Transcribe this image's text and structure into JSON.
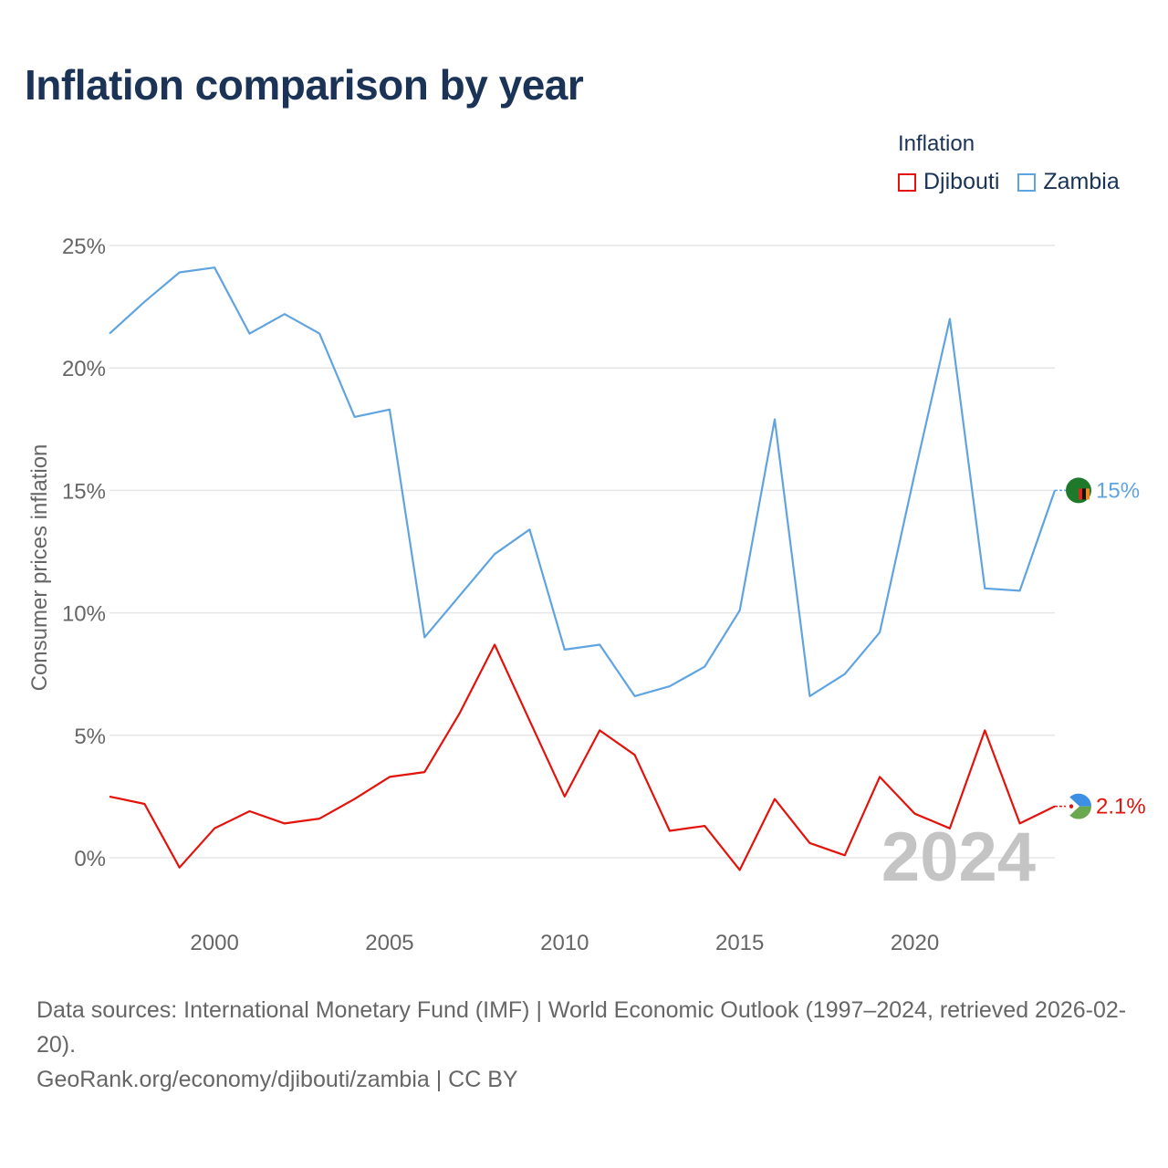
{
  "title": "Inflation comparison by year",
  "legend": {
    "title": "Inflation",
    "items": [
      {
        "label": "Djibouti",
        "color": "#e3120b"
      },
      {
        "label": "Zambia",
        "color": "#5fa4e0"
      }
    ]
  },
  "chart_data": {
    "type": "line",
    "ylabel": "Consumer prices inflation",
    "xlabel": "",
    "ylim": [
      -2.5,
      25
    ],
    "xlim": [
      1997,
      2024
    ],
    "yticks": [
      0,
      5,
      10,
      15,
      20,
      25
    ],
    "ytick_labels": [
      "0%",
      "5%",
      "10%",
      "15%",
      "20%",
      "25%"
    ],
    "xticks": [
      2000,
      2005,
      2010,
      2015,
      2020
    ],
    "xtick_labels": [
      "2000",
      "2005",
      "2010",
      "2015",
      "2020"
    ],
    "grid": true,
    "year_watermark": "2024",
    "x": [
      1997,
      1998,
      1999,
      2000,
      2001,
      2002,
      2003,
      2004,
      2005,
      2006,
      2007,
      2008,
      2009,
      2010,
      2011,
      2012,
      2013,
      2014,
      2015,
      2016,
      2017,
      2018,
      2019,
      2020,
      2021,
      2022,
      2023,
      2024
    ],
    "series": [
      {
        "name": "Djibouti",
        "color": "#e3120b",
        "end_label": "2.1%",
        "values": [
          2.5,
          2.2,
          -0.4,
          1.2,
          1.9,
          1.4,
          1.6,
          2.4,
          3.3,
          3.5,
          5.9,
          8.7,
          5.6,
          2.5,
          5.2,
          4.2,
          1.1,
          1.3,
          -0.5,
          2.4,
          0.6,
          0.1,
          3.3,
          1.8,
          1.2,
          5.2,
          1.4,
          2.1
        ]
      },
      {
        "name": "Zambia",
        "color": "#5fa4e0",
        "end_label": "15%",
        "values": [
          21.4,
          22.7,
          23.9,
          24.1,
          21.4,
          22.2,
          21.4,
          18.0,
          18.3,
          9.0,
          10.7,
          12.4,
          13.4,
          8.5,
          8.7,
          6.6,
          7.0,
          7.8,
          10.1,
          17.9,
          6.6,
          7.5,
          9.2,
          15.7,
          22.0,
          11.0,
          10.9,
          15.0
        ]
      }
    ]
  },
  "footer": {
    "sources": "Data sources: International Monetary Fund (IMF) | World Economic Outlook (1997–2024, retrieved 2026-02-20).",
    "credit": "GeoRank.org/economy/djibouti/zambia | CC BY"
  }
}
